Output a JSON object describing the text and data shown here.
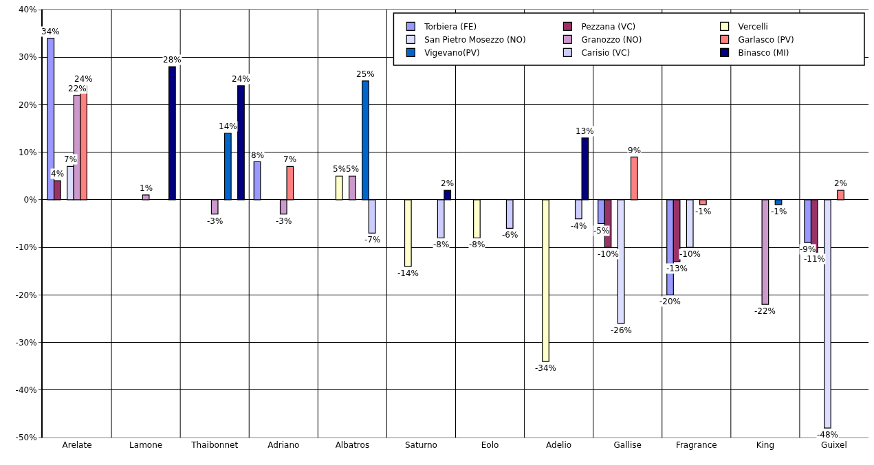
{
  "chart_data": {
    "type": "bar",
    "categories": [
      "Arelate",
      "Lamone",
      "Thaibonnet",
      "Adriano",
      "Albatros",
      "Saturno",
      "Eolo",
      "Adelio",
      "Gallise",
      "Fragrance",
      "King",
      "Guixel"
    ],
    "series": [
      {
        "name": "Torbiera (FE)",
        "color": "#9999ff",
        "values": [
          34,
          null,
          null,
          8,
          null,
          null,
          null,
          null,
          -5,
          -20,
          null,
          -9
        ],
        "value_labels": [
          "34%",
          null,
          null,
          "8%",
          null,
          null,
          null,
          null,
          "-5%",
          "-20%",
          null,
          "-9%"
        ]
      },
      {
        "name": "Pezzana (VC)",
        "color": "#993366",
        "values": [
          4,
          null,
          null,
          null,
          null,
          null,
          null,
          null,
          -10,
          -13,
          null,
          -11
        ],
        "value_labels": [
          "4%",
          null,
          null,
          null,
          null,
          null,
          null,
          null,
          "-10%",
          "-13%",
          null,
          "-11%"
        ]
      },
      {
        "name": "Vercelli",
        "color": "#ffffcc",
        "values": [
          null,
          null,
          null,
          null,
          5,
          -14,
          -8,
          -34,
          null,
          null,
          null,
          null
        ],
        "value_labels": [
          null,
          null,
          null,
          null,
          "5%",
          "-14%",
          "-8%",
          "-34%",
          null,
          null,
          null,
          null
        ]
      },
      {
        "name": "San Pietro Mosezzo (NO)",
        "color": "#ddddff",
        "values": [
          7,
          null,
          null,
          null,
          null,
          null,
          null,
          null,
          -26,
          -10,
          null,
          -48
        ],
        "value_labels": [
          "7%",
          null,
          null,
          null,
          null,
          null,
          null,
          null,
          "-26%",
          "-10%",
          null,
          "-48%"
        ]
      },
      {
        "name": "Granozzo (NO)",
        "color": "#cc99cc",
        "values": [
          22,
          1,
          -3,
          -3,
          5,
          null,
          null,
          null,
          null,
          null,
          -22,
          null
        ],
        "value_labels": [
          "22%",
          "1%",
          "-3%",
          "-3%",
          "5%",
          null,
          null,
          null,
          null,
          null,
          "-22%",
          null
        ]
      },
      {
        "name": "Garlasco (PV)",
        "color": "#ff8080",
        "values": [
          24,
          null,
          null,
          7,
          null,
          null,
          null,
          null,
          9,
          -1,
          null,
          2
        ],
        "value_labels": [
          "24%",
          null,
          null,
          "7%",
          null,
          null,
          null,
          null,
          "9%",
          "-1%",
          null,
          "2%"
        ]
      },
      {
        "name": "Vigevano(PV)",
        "color": "#0066cc",
        "values": [
          null,
          null,
          14,
          null,
          25,
          null,
          null,
          null,
          null,
          null,
          -1,
          null
        ],
        "value_labels": [
          null,
          null,
          "14%",
          null,
          "25%",
          null,
          null,
          null,
          null,
          null,
          "-1%",
          null
        ]
      },
      {
        "name": "Carisio (VC)",
        "color": "#ccccff",
        "values": [
          null,
          null,
          null,
          null,
          -7,
          -8,
          -6,
          -4,
          null,
          null,
          null,
          null
        ],
        "value_labels": [
          null,
          null,
          null,
          null,
          "-7%",
          "-8%",
          "-6%",
          "-4%",
          null,
          null,
          null,
          null
        ]
      },
      {
        "name": "Binasco (MI)",
        "color": "#000080",
        "values": [
          null,
          28,
          24,
          null,
          null,
          2,
          null,
          13,
          null,
          null,
          null,
          null
        ],
        "value_labels": [
          null,
          "28%",
          "24%",
          null,
          null,
          "2%",
          null,
          "13%",
          null,
          null,
          null,
          null
        ]
      }
    ],
    "ylim": [
      -50,
      40
    ],
    "yticks": [
      {
        "value": -50,
        "label": "-50%"
      },
      {
        "value": -40,
        "label": "-40%"
      },
      {
        "value": -30,
        "label": "-30%"
      },
      {
        "value": -20,
        "label": "-20%"
      },
      {
        "value": -10,
        "label": "-10%"
      },
      {
        "value": 0,
        "label": "0%"
      },
      {
        "value": 10,
        "label": "10%"
      },
      {
        "value": 20,
        "label": "20%"
      },
      {
        "value": 30,
        "label": "30%"
      },
      {
        "value": 40,
        "label": "40%"
      }
    ],
    "grid": true,
    "legend": "top right"
  }
}
